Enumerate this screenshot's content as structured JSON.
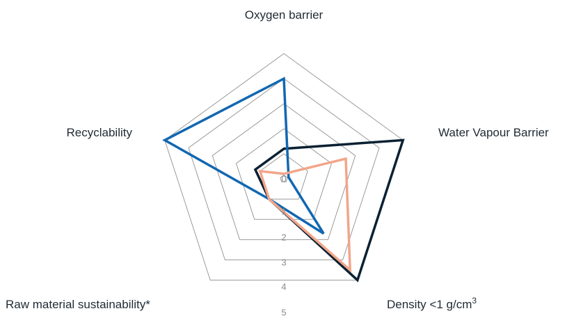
{
  "chart_data": {
    "type": "radar",
    "axes": [
      "Oxygen barrier",
      "Water Vapour Barrier",
      "Density <1 g/cm",
      "Raw material sustainability*",
      "Recyclability"
    ],
    "axis_superscripts": {
      "Density <1 g/cm": "3"
    },
    "ticks": [
      "0",
      "1",
      "2",
      "3",
      "4",
      "5"
    ],
    "rlim": [
      0,
      5
    ],
    "grid": true,
    "legend": "none",
    "series": [
      {
        "color": "#0b2133",
        "values": [
          1.2,
          5.0,
          5.0,
          1.0,
          1.2
        ]
      },
      {
        "color": "#1167b1",
        "values": [
          4.0,
          0.2,
          2.7,
          1.0,
          5.0
        ]
      },
      {
        "color": "#f2a58a",
        "values": [
          0.2,
          2.6,
          4.5,
          1.0,
          1.0
        ]
      }
    ]
  },
  "colors": {
    "grid": "#9a9a9a",
    "tick_text": "#8a8a8a",
    "label_text": "#1f2a33"
  }
}
